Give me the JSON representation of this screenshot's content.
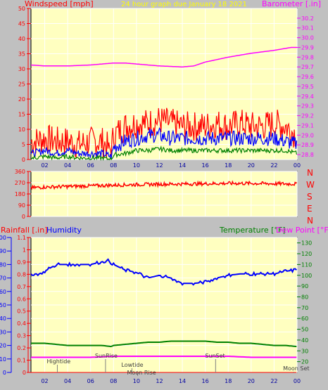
{
  "header": {
    "left_title": "Windspeed [mph]",
    "center_title": "24 hour graph due   January 18 2021",
    "right_title": "Barometer [.in]"
  },
  "mid_labels": {
    "rainfall": "Rainfall [.in]",
    "humidity": "Humidity",
    "temperature": "Temperature [°F]",
    "dewpoint": "Dew Point [°F]"
  },
  "compass_labels": [
    "N",
    "W",
    "S",
    "E",
    "N"
  ],
  "x_ticks": [
    "02",
    "04",
    "06",
    "08",
    "10",
    "12",
    "14",
    "16",
    "18",
    "20",
    "22",
    "00"
  ],
  "events": [
    {
      "label": "Hightide",
      "x": 3.1
    },
    {
      "label": "SunRise",
      "x": 7.3
    },
    {
      "label": "Lowtide",
      "x": 9.6
    },
    {
      "label": "Moon Rise",
      "x": 10.1
    },
    {
      "label": "SunSet",
      "x": 16.9
    },
    {
      "label": "Moon Set",
      "x": 23.7
    }
  ],
  "colors": {
    "plot_bg": "#ffffc0",
    "frame_bg": "#c0c0c0",
    "grid": "#ffffff",
    "wind_gust": "#ff0000",
    "wind_avg": "#0000ff",
    "wind_low": "#008000",
    "barometer": "#ff00ff",
    "direction": "#ff0000",
    "humidity": "#0000ff",
    "temperature": "#008000",
    "dewpoint": "#ff00ff",
    "left_axis": "#ff0000",
    "humidity_axis": "#0000ff",
    "temp_axis": "#008000"
  },
  "chart_data": [
    {
      "type": "line",
      "title": "24 hour graph due   January 18 2021",
      "xlabel": "",
      "xlim": [
        0.8,
        24
      ],
      "x_ticks": [
        "02",
        "04",
        "06",
        "08",
        "10",
        "12",
        "14",
        "16",
        "18",
        "20",
        "22",
        "00"
      ],
      "ylabel_left": "Windspeed [mph]",
      "ylim_left": [
        0,
        50
      ],
      "yticks_left": [
        0,
        5,
        10,
        15,
        20,
        25,
        30,
        35,
        40,
        45,
        50
      ],
      "ylabel_right": "Barometer [.in]",
      "ylim_right": [
        28.75,
        30.3
      ],
      "yticks_right": [
        28.8,
        28.9,
        29.0,
        29.1,
        29.2,
        29.3,
        29.4,
        29.5,
        29.6,
        29.7,
        29.8,
        29.9,
        30.0,
        30.1,
        30.2
      ],
      "series": [
        {
          "axis": "left",
          "x": [
            1,
            2,
            3,
            4,
            5,
            6,
            7,
            7.8,
            8,
            9,
            10,
            11,
            12,
            13,
            14,
            15,
            16,
            17,
            18,
            19,
            20,
            21,
            22,
            23,
            24
          ],
          "values": [
            6,
            7,
            6,
            6,
            5,
            6,
            6,
            3,
            8,
            11,
            12,
            12,
            13,
            12,
            11,
            11,
            11,
            12,
            11,
            12,
            11,
            11,
            12,
            11,
            8
          ]
        },
        {
          "axis": "left",
          "x": [
            1,
            2,
            3,
            4,
            5,
            6,
            7,
            7.8,
            8,
            9,
            10,
            11,
            12,
            13,
            14,
            15,
            16,
            17,
            18,
            19,
            20,
            21,
            22,
            23,
            24
          ],
          "values": [
            2,
            3,
            2,
            3,
            2,
            2,
            2,
            1,
            4,
            6,
            7,
            8,
            8,
            7,
            7,
            7,
            7,
            7,
            7,
            7,
            7,
            7,
            7,
            6,
            5
          ]
        },
        {
          "axis": "left",
          "x": [
            1,
            2,
            3,
            4,
            5,
            6,
            7,
            7.8,
            8,
            9,
            10,
            11,
            12,
            13,
            14,
            15,
            16,
            17,
            18,
            19,
            20,
            21,
            22,
            23,
            24
          ],
          "values": [
            0.5,
            1,
            0.5,
            1,
            0.5,
            0.5,
            0.5,
            0,
            1.5,
            2,
            3,
            3,
            3.5,
            3,
            3,
            3,
            3,
            3,
            3,
            3,
            3,
            3,
            3,
            3,
            2
          ]
        },
        {
          "axis": "right",
          "x": [
            0.8,
            2,
            4,
            6,
            8,
            9,
            10,
            12,
            14,
            15,
            16,
            18,
            20,
            22,
            23.5,
            24
          ],
          "values": [
            29.72,
            29.71,
            29.71,
            29.72,
            29.74,
            29.74,
            29.73,
            29.71,
            29.7,
            29.71,
            29.75,
            29.8,
            29.84,
            29.87,
            29.9,
            29.9
          ]
        }
      ]
    },
    {
      "type": "line",
      "title": "",
      "xlim": [
        0.8,
        24
      ],
      "ylim": [
        0,
        360
      ],
      "yticks": [
        0,
        90,
        180,
        270,
        360
      ],
      "series": [
        {
          "x": [
            1,
            2,
            4,
            6,
            8,
            10,
            12,
            14,
            16,
            18,
            20,
            22,
            24
          ],
          "values": [
            230,
            235,
            240,
            245,
            250,
            255,
            258,
            260,
            262,
            265,
            265,
            262,
            260
          ]
        }
      ]
    },
    {
      "type": "line",
      "title": "",
      "xlim": [
        0.8,
        24
      ],
      "ylabel_left": "Rainfall [.in]",
      "ylim_rain": [
        0,
        1.1
      ],
      "yticks_rain": [
        0,
        0.1,
        0.2,
        0.3,
        0.4,
        0.5,
        0.6,
        0.7,
        0.8,
        0.9,
        1.0,
        1.1
      ],
      "ylim_humidity": [
        0,
        100
      ],
      "yticks_humidity": [
        0,
        10,
        20,
        30,
        40,
        50,
        60,
        70,
        80,
        90,
        100
      ],
      "ylabel_right": "Temperature [°F]",
      "ylim_temp": [
        10,
        135
      ],
      "yticks_temp": [
        20,
        30,
        40,
        50,
        60,
        70,
        80,
        90,
        100,
        110,
        120,
        130
      ],
      "series": [
        {
          "name": "Humidity",
          "axis": "humidity",
          "x": [
            1,
            1.5,
            2,
            3,
            4,
            5,
            6,
            7,
            7.5,
            8,
            9,
            10,
            11,
            12,
            13,
            14,
            15,
            16,
            17,
            18,
            19,
            20,
            21,
            22,
            23,
            24
          ],
          "values": [
            73,
            73,
            75,
            80,
            80,
            80,
            80,
            82,
            83,
            80,
            76,
            74,
            70,
            72,
            70,
            66,
            66,
            67,
            70,
            72,
            73,
            73,
            73,
            73,
            75,
            76
          ]
        },
        {
          "name": "Temperature",
          "axis": "temp",
          "x": [
            1,
            2,
            3,
            4,
            5,
            6,
            7,
            7.8,
            8,
            9,
            10,
            11,
            12,
            13,
            14,
            15,
            16,
            17,
            18,
            19,
            20,
            21,
            22,
            23,
            24
          ],
          "values": [
            37,
            37,
            36,
            35,
            35,
            35,
            35,
            34,
            35,
            36,
            37,
            38,
            38,
            39,
            39,
            39,
            39,
            38,
            38,
            37,
            37,
            36,
            35,
            35,
            34
          ]
        },
        {
          "name": "Dew Point",
          "axis": "temp",
          "x": [
            1,
            2,
            4,
            6,
            8,
            10,
            12,
            14,
            16,
            18,
            20,
            22,
            24
          ],
          "values": [
            24,
            24,
            24,
            24,
            25,
            25,
            25,
            25,
            25,
            25,
            24,
            24,
            24
          ]
        },
        {
          "axis": "rain",
          "x": [
            1,
            24
          ],
          "values": [
            0,
            0
          ]
        }
      ]
    }
  ]
}
